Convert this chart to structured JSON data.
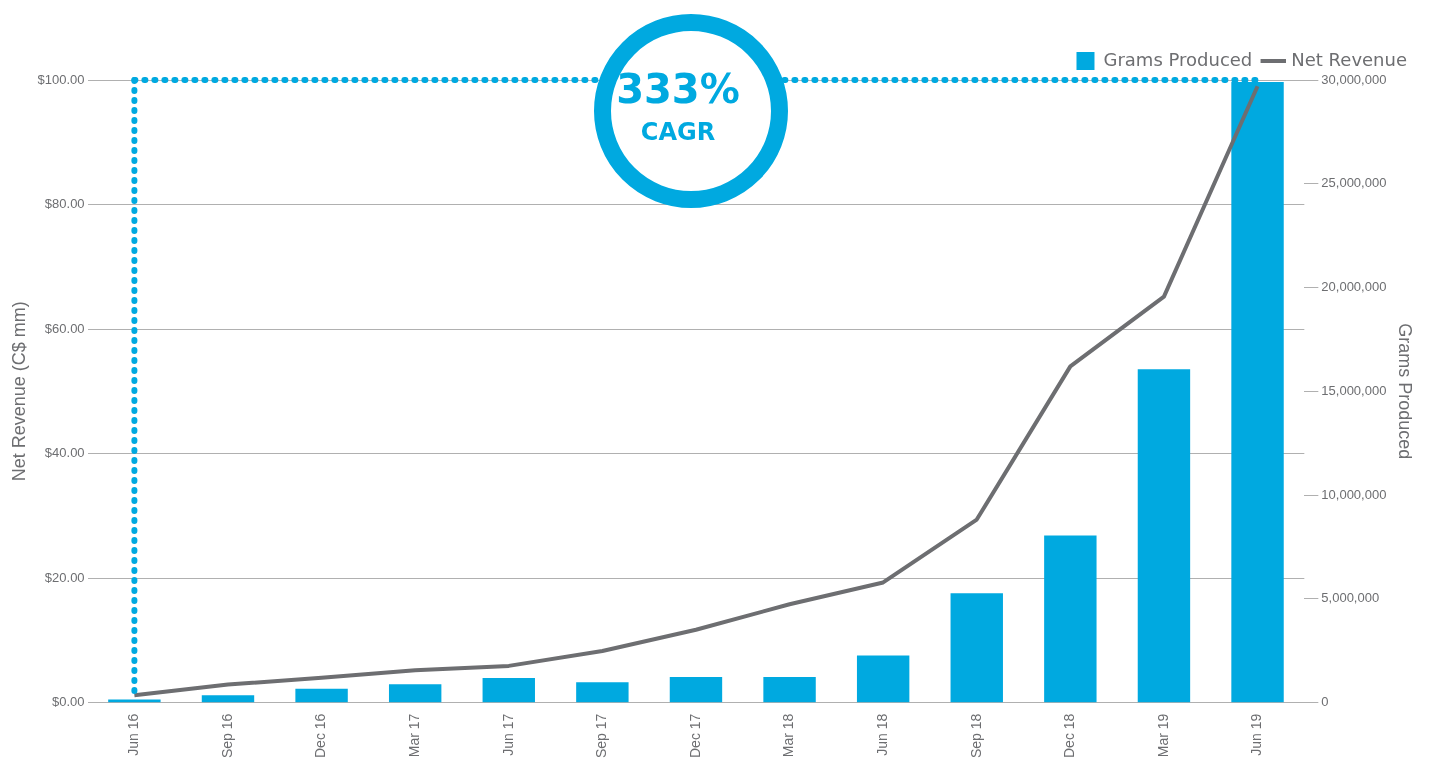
{
  "chart_data": {
    "type": "bar",
    "categories": [
      "Jun 16",
      "Sep 16",
      "Dec 16",
      "Mar 17",
      "Jun 17",
      "Sep 17",
      "Dec 17",
      "Mar 18",
      "Jun 18",
      "Sep 18",
      "Dec 18",
      "Mar 19",
      "Jun 19"
    ],
    "series": [
      {
        "name": "Grams Produced",
        "axis": "y2",
        "color": "#00a9e0",
        "values": [
          150000,
          350000,
          670000,
          880000,
          1190000,
          980000,
          1240000,
          1240000,
          2270000,
          5270000,
          8050000,
          16060000,
          29900000
        ]
      },
      {
        "name": "Net Revenue",
        "type": "line",
        "axis": "y",
        "color": "#6d6e71",
        "values": [
          1.2,
          2.9,
          4.0,
          5.2,
          5.9,
          8.3,
          11.7,
          15.8,
          19.3,
          29.4,
          54.0,
          65.2,
          99.0
        ]
      }
    ],
    "ylabel": "Net Revenue (C$ mm)",
    "y2label": "Grams Produced",
    "ylim": [
      0,
      100
    ],
    "yticks": [
      {
        "value": 0,
        "label": "$0.00"
      },
      {
        "value": 20,
        "label": "$20.00"
      },
      {
        "value": 40,
        "label": "$40.00"
      },
      {
        "value": 60,
        "label": "$60.00"
      },
      {
        "value": 80,
        "label": "$80.00"
      },
      {
        "value": 100,
        "label": "$100.00"
      }
    ],
    "y2lim": [
      0,
      30000000
    ],
    "y2ticks": [
      {
        "value": 0,
        "label": "0"
      },
      {
        "value": 5000000,
        "label": "5,000,000"
      },
      {
        "value": 10000000,
        "label": "10,000,000"
      },
      {
        "value": 15000000,
        "label": "15,000,000"
      },
      {
        "value": 20000000,
        "label": "20,000,000"
      },
      {
        "value": 25000000,
        "label": "25,000,000"
      },
      {
        "value": 30000000,
        "label": "30,000,000"
      }
    ],
    "ref_lines": [
      {
        "axis": "y",
        "value": 100,
        "color": "#00a9e0",
        "line_style": "dotted"
      },
      {
        "axis": "x",
        "value": "Jun 16",
        "color": "#00a9e0",
        "line_style": "dotted"
      }
    ],
    "annotations": [
      "333%",
      "CAGR"
    ],
    "grid": "y",
    "legend": "top right",
    "marker": "none"
  }
}
